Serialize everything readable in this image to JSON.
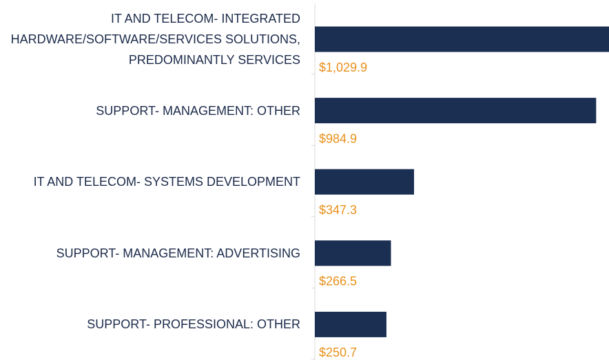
{
  "chart_data": {
    "type": "bar",
    "orientation": "horizontal",
    "categories": [
      "IT AND TELECOM- INTEGRATED HARDWARE/SOFTWARE/SERVICES SOLUTIONS, PREDOMINANTLY SERVICES",
      "SUPPORT- MANAGEMENT: OTHER",
      "IT AND TELECOM- SYSTEMS DEVELOPMENT",
      "SUPPORT- MANAGEMENT: ADVERTISING",
      "SUPPORT- PROFESSIONAL: OTHER"
    ],
    "values": [
      1029.9,
      984.9,
      347.3,
      266.5,
      250.7
    ],
    "value_labels": [
      "$1,029.9",
      "$984.9",
      "$347.3",
      "$266.5",
      "$250.7"
    ],
    "color": "#1b2f52",
    "label_color": "#e8901a"
  }
}
